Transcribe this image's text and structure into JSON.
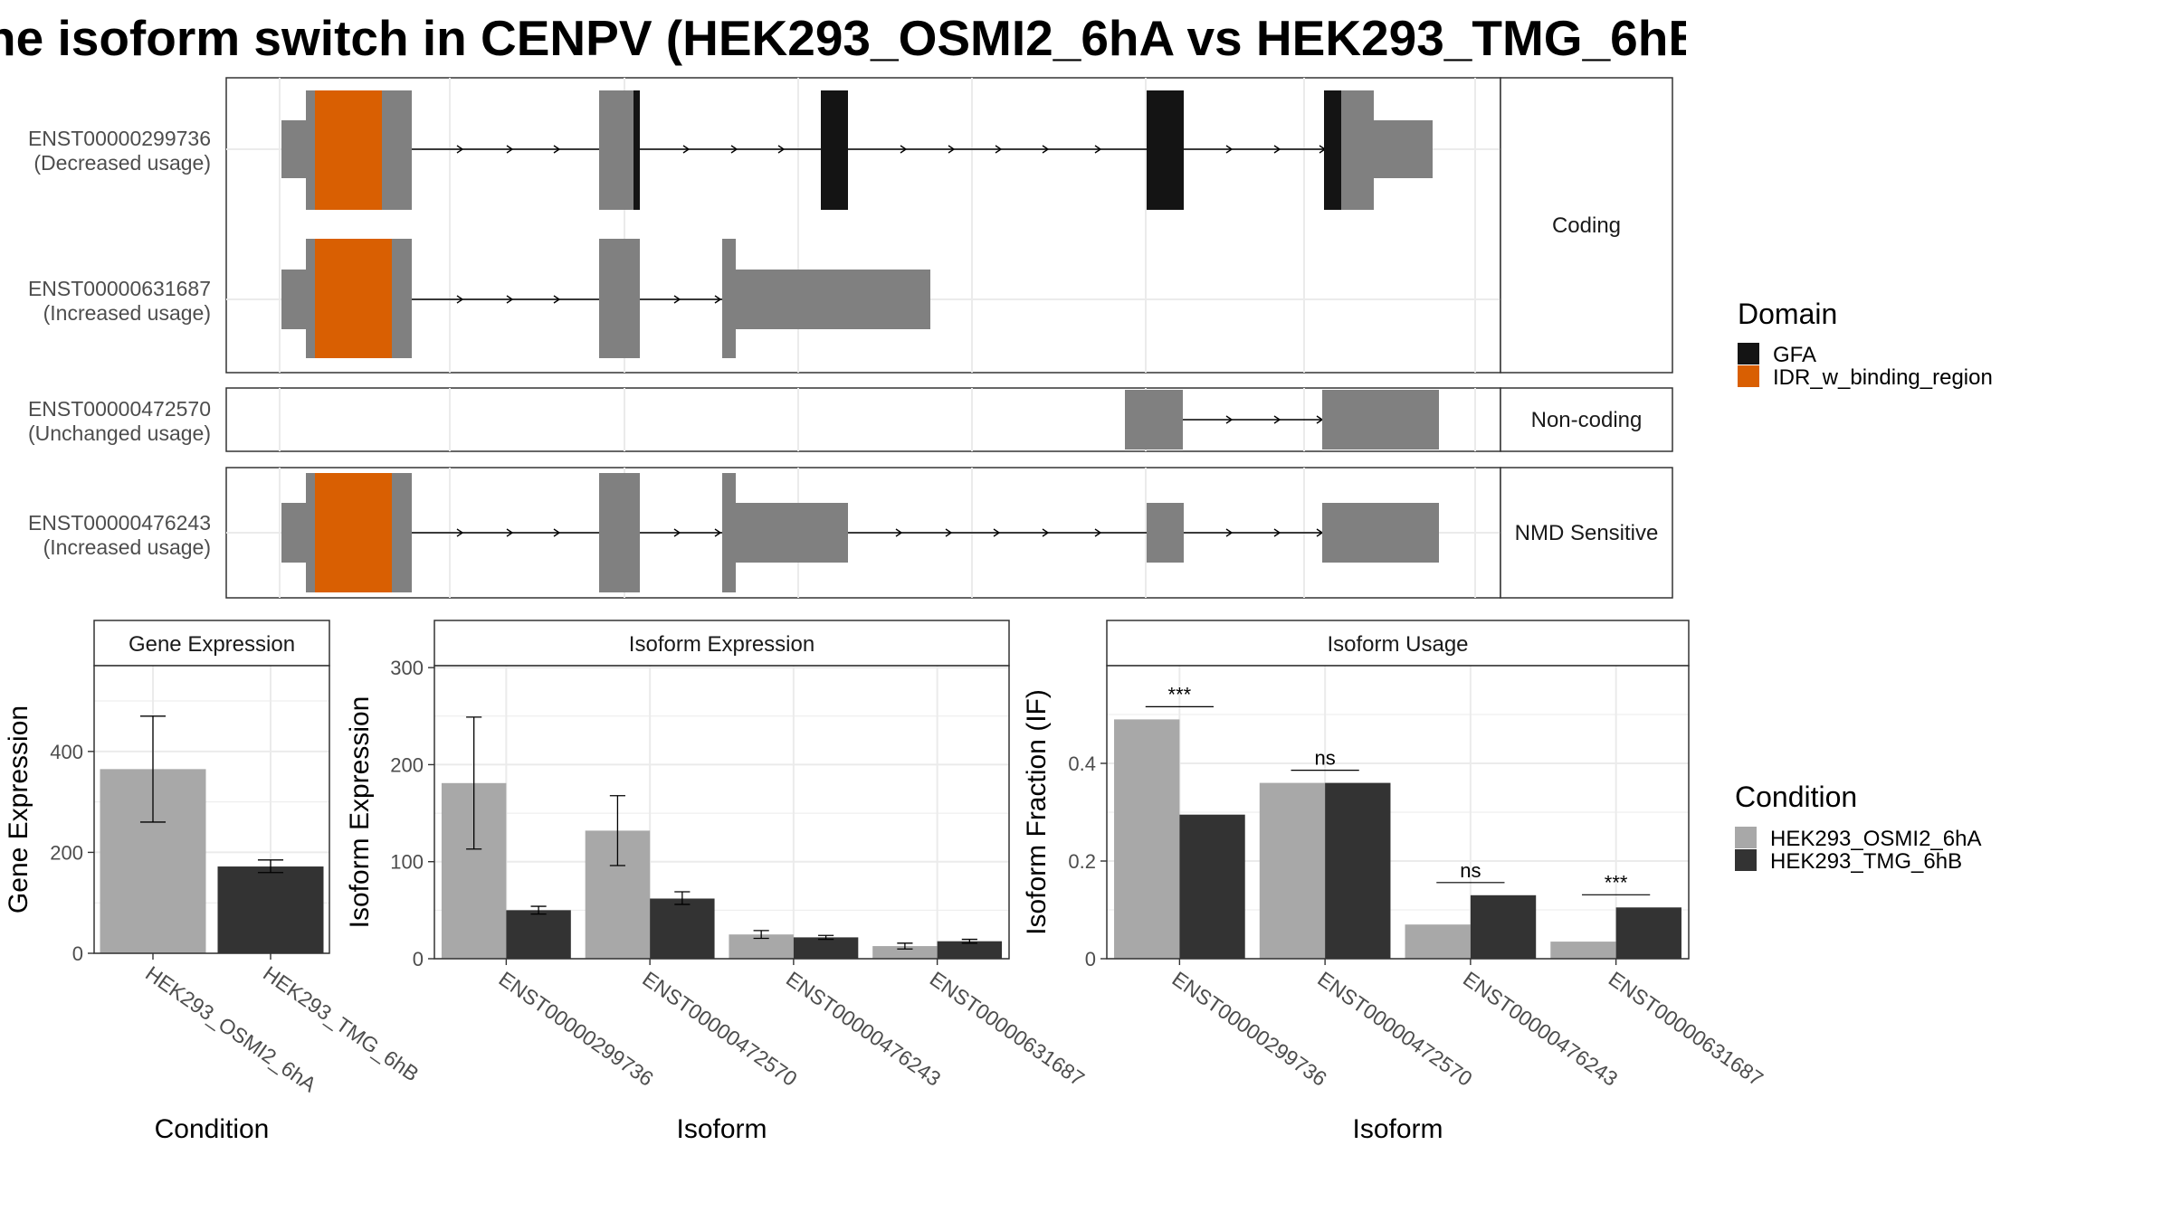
{
  "title": "he isoform switch in CENPV (HEK293_OSMI2_6hA vs HEK293_TMG_6hB",
  "colors": {
    "gfa": "#141414",
    "idr": "#D95F02",
    "exon": "#808080",
    "cond_a": "#A8A8A8",
    "cond_b": "#333333",
    "grid": "#EBEBEB",
    "strip_text": "#1A1A1A"
  },
  "structure_panel": {
    "facets": [
      {
        "label": "Coding",
        "transcripts": [
          {
            "id": "ENST00000299736",
            "usage": "(Decreased usage)"
          },
          {
            "id": "ENST00000631687",
            "usage": "(Increased usage)"
          }
        ]
      },
      {
        "label": "Non-coding",
        "transcripts": [
          {
            "id": "ENST00000472570",
            "usage": "(Unchanged usage)"
          }
        ]
      },
      {
        "label": "NMD Sensitive",
        "transcripts": [
          {
            "id": "ENST00000476243",
            "usage": "(Increased usage)"
          }
        ]
      }
    ],
    "domain_legend": {
      "title": "Domain",
      "items": [
        {
          "label": "GFA",
          "color": "#141414"
        },
        {
          "label": "IDR_w_binding_region",
          "color": "#D95F02"
        }
      ]
    }
  },
  "condition_legend": {
    "title": "Condition",
    "items": [
      {
        "label": "HEK293_OSMI2_6hA",
        "color": "#A8A8A8"
      },
      {
        "label": "HEK293_TMG_6hB",
        "color": "#333333"
      }
    ]
  },
  "chart_data": [
    {
      "type": "bar",
      "title": "Gene Expression",
      "xlabel": "Condition",
      "ylabel": "Gene Expression",
      "categories": [
        "HEK293_OSMI2_6hA",
        "HEK293_TMG_6hB"
      ],
      "values": [
        365,
        172
      ],
      "error": [
        [
          260,
          470
        ],
        [
          160,
          185
        ]
      ],
      "ylim": [
        0,
        570
      ],
      "yticks": [
        0,
        200,
        400
      ]
    },
    {
      "type": "bar",
      "title": "Isoform Expression",
      "xlabel": "Isoform",
      "ylabel": "Isoform Expression",
      "categories": [
        "ENST00000299736",
        "ENST00000472570",
        "ENST00000476243",
        "ENST00000631687"
      ],
      "series": [
        {
          "name": "HEK293_OSMI2_6hA",
          "values": [
            181,
            132,
            25,
            13
          ],
          "error": [
            [
              113,
              249
            ],
            [
              96,
              168
            ],
            [
              21,
              29
            ],
            [
              10,
              16
            ]
          ]
        },
        {
          "name": "HEK293_TMG_6hB",
          "values": [
            50,
            62,
            22,
            18
          ],
          "error": [
            [
              46,
              54
            ],
            [
              56,
              69
            ],
            [
              20,
              24
            ],
            [
              16,
              20
            ]
          ]
        }
      ],
      "ylim": [
        0,
        302
      ],
      "yticks": [
        0,
        100,
        200,
        300
      ]
    },
    {
      "type": "bar",
      "title": "Isoform Usage",
      "xlabel": "Isoform",
      "ylabel": "Isoform Fraction (IF)",
      "categories": [
        "ENST00000299736",
        "ENST00000472570",
        "ENST00000476243",
        "ENST00000631687"
      ],
      "series": [
        {
          "name": "HEK293_OSMI2_6hA",
          "values": [
            0.49,
            0.36,
            0.07,
            0.035
          ]
        },
        {
          "name": "HEK293_TMG_6hB",
          "values": [
            0.295,
            0.36,
            0.13,
            0.105
          ]
        }
      ],
      "significance": [
        "***",
        "ns",
        "ns",
        "***"
      ],
      "ylim": [
        0,
        0.6
      ],
      "yticks": [
        0.0,
        0.2,
        0.4
      ]
    }
  ]
}
